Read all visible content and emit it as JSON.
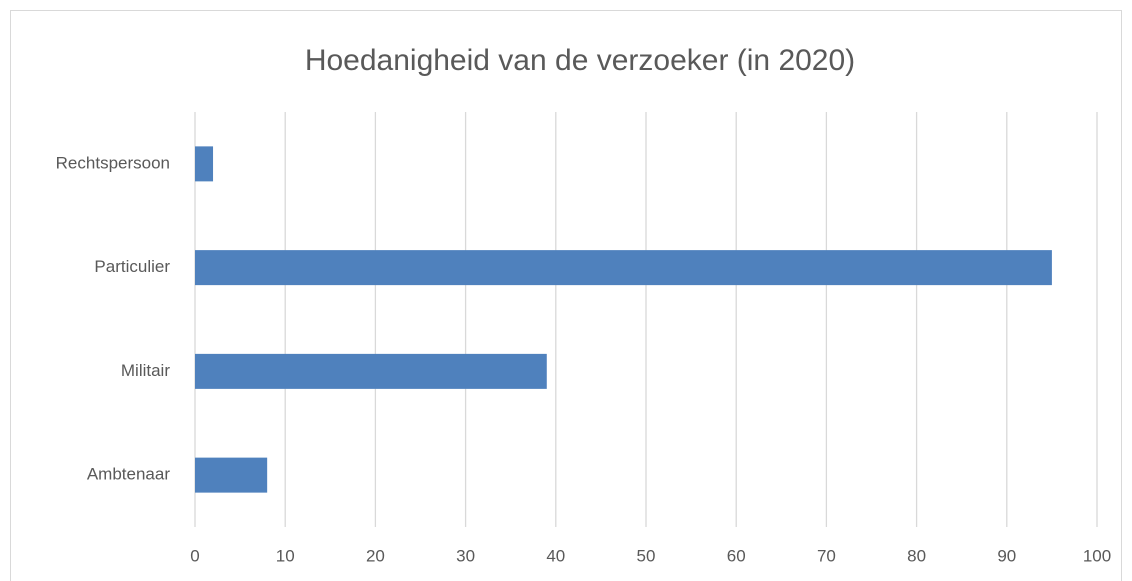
{
  "chart_data": {
    "type": "bar",
    "orientation": "horizontal",
    "title": "Hoedanigheid van de verzoeker (in 2020)",
    "categories": [
      "Rechtspersoon",
      "Particulier",
      "Militair",
      "Ambtenaar"
    ],
    "values": [
      2,
      95,
      39,
      8
    ],
    "color": "#4f81bd",
    "xlim": [
      0,
      100
    ],
    "xticks": [
      0,
      10,
      20,
      30,
      40,
      50,
      60,
      70,
      80,
      90,
      100
    ],
    "grid": true
  }
}
